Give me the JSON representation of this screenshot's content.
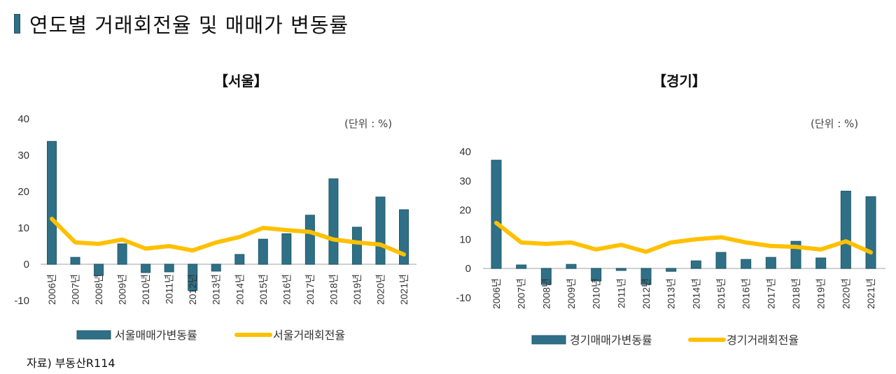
{
  "page": {
    "title": "연도별 거래회전율 및 매매가 변동률",
    "source": "자료) 부동산R114",
    "colors": {
      "bar": "#2f7087",
      "line": "#ffc000",
      "accent": "#2f7087",
      "axis": "#d0d0d0"
    }
  },
  "chart_data": [
    {
      "type": "bar+line",
      "title": "【서울】",
      "unit_label": "(단위 : %)",
      "xlabel": "",
      "ylabel": "",
      "ylim": [
        -10,
        40
      ],
      "yticks": [
        "40",
        "30",
        "20",
        "10",
        "0",
        "-10"
      ],
      "ytick_values": [
        40,
        30,
        20,
        10,
        0,
        -10
      ],
      "grid": false,
      "legend_position": "bottom",
      "categories": [
        "2006년",
        "2007년",
        "2008년",
        "2009년",
        "2010년",
        "2011년",
        "2012년",
        "2013년",
        "2014년",
        "2015년",
        "2016년",
        "2017년",
        "2018년",
        "2019년",
        "2020년",
        "2021년"
      ],
      "series": [
        {
          "name": "서울매매가변동률",
          "kind": "bar",
          "color": "#2f7087",
          "values": [
            33.8,
            1.9,
            -3.1,
            5.6,
            -2.3,
            -2.1,
            -7.2,
            -1.9,
            2.7,
            6.9,
            8.4,
            13.5,
            23.5,
            10.2,
            18.5,
            15.0
          ]
        },
        {
          "name": "서울거래회전율",
          "kind": "line",
          "color": "#ffc000",
          "values": [
            12.5,
            6.0,
            5.6,
            6.8,
            4.3,
            5.0,
            3.8,
            6.0,
            7.5,
            10.0,
            9.4,
            8.9,
            6.8,
            6.0,
            5.4,
            2.7
          ]
        }
      ]
    },
    {
      "type": "bar+line",
      "title": "【경기】",
      "unit_label": "(단위 : %)",
      "xlabel": "",
      "ylabel": "",
      "ylim": [
        -10,
        40
      ],
      "yticks": [
        "40",
        "30",
        "20",
        "10",
        "0",
        "-10"
      ],
      "ytick_values": [
        40,
        30,
        20,
        10,
        0,
        -10
      ],
      "grid": false,
      "legend_position": "bottom",
      "categories": [
        "2006년",
        "2007년",
        "2008년",
        "2009년",
        "2010년",
        "2011년",
        "2012년",
        "2013년",
        "2014년",
        "2015년",
        "2016년",
        "2017년",
        "2018년",
        "2019년",
        "2020년",
        "2021년"
      ],
      "series": [
        {
          "name": "경기매매가변동률",
          "kind": "bar",
          "color": "#2f7087",
          "values": [
            37.1,
            1.2,
            -5.5,
            1.4,
            -4.3,
            -0.7,
            -5.5,
            -1.0,
            2.6,
            5.5,
            3.1,
            3.8,
            9.3,
            3.6,
            26.5,
            24.6
          ]
        },
        {
          "name": "경기거래회전율",
          "kind": "line",
          "color": "#ffc000",
          "values": [
            15.6,
            8.9,
            8.4,
            8.9,
            6.5,
            8.1,
            5.7,
            8.9,
            10.0,
            10.7,
            8.9,
            7.7,
            7.4,
            6.5,
            9.3,
            5.5
          ]
        }
      ]
    }
  ]
}
